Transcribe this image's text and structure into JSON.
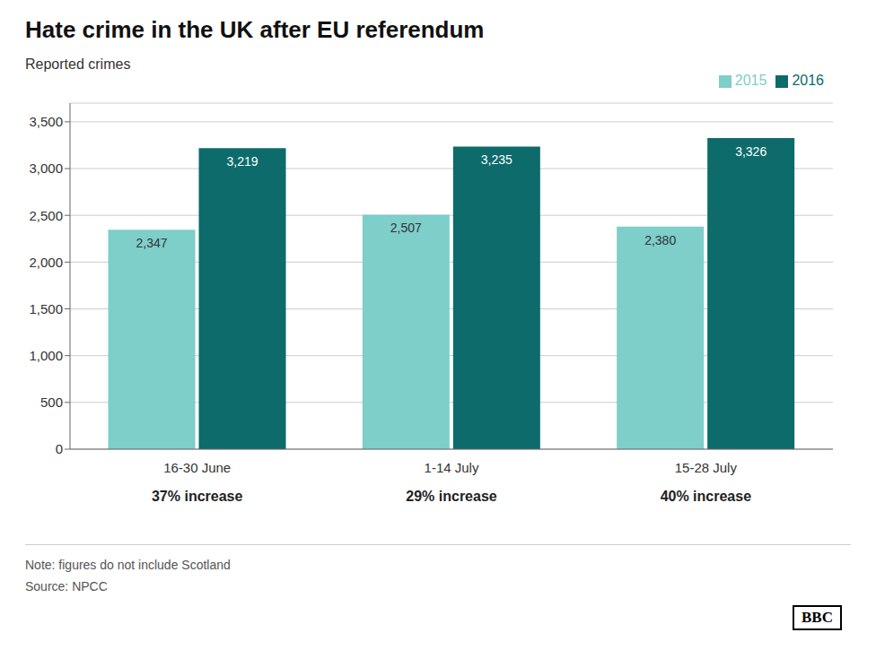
{
  "chart_data": {
    "type": "bar",
    "title": "Hate crime in the UK after EU referendum",
    "y_label": "Reported crimes",
    "categories": [
      "16-30 June",
      "1-14 July",
      "15-28 July"
    ],
    "series": [
      {
        "name": "2015",
        "color": "#7ECECA",
        "values": [
          2347,
          2507,
          2380
        ],
        "value_labels": [
          "2,347",
          "2,507",
          "2,380"
        ]
      },
      {
        "name": "2016",
        "color": "#0D6B6B",
        "values": [
          3219,
          3235,
          3326
        ],
        "value_labels": [
          "3,219",
          "3,235",
          "3,326"
        ]
      }
    ],
    "ylim": [
      0,
      3700
    ],
    "yticks": [
      0,
      500,
      {
        "value": 1000,
        "label": "1,000"
      },
      {
        "value": 1500,
        "label": "1,500"
      },
      {
        "value": 2000,
        "label": "2,000"
      },
      {
        "value": 2500,
        "label": "2,500"
      },
      {
        "value": 3000,
        "label": "3,000"
      },
      {
        "value": 3500,
        "label": "3,500"
      }
    ],
    "grid": true,
    "legend": "top-right",
    "data_labels": true,
    "annotations": [
      {
        "text": "37% increase",
        "category": "16-30 June"
      },
      {
        "text": "29% increase",
        "category": "1-14 July"
      },
      {
        "text": "40% increase",
        "category": "15-28 July"
      },
      {
        "text": "Note: figures do not include Scotland"
      },
      {
        "text": "Source: NPCC"
      },
      {
        "text": "BBC"
      }
    ]
  }
}
